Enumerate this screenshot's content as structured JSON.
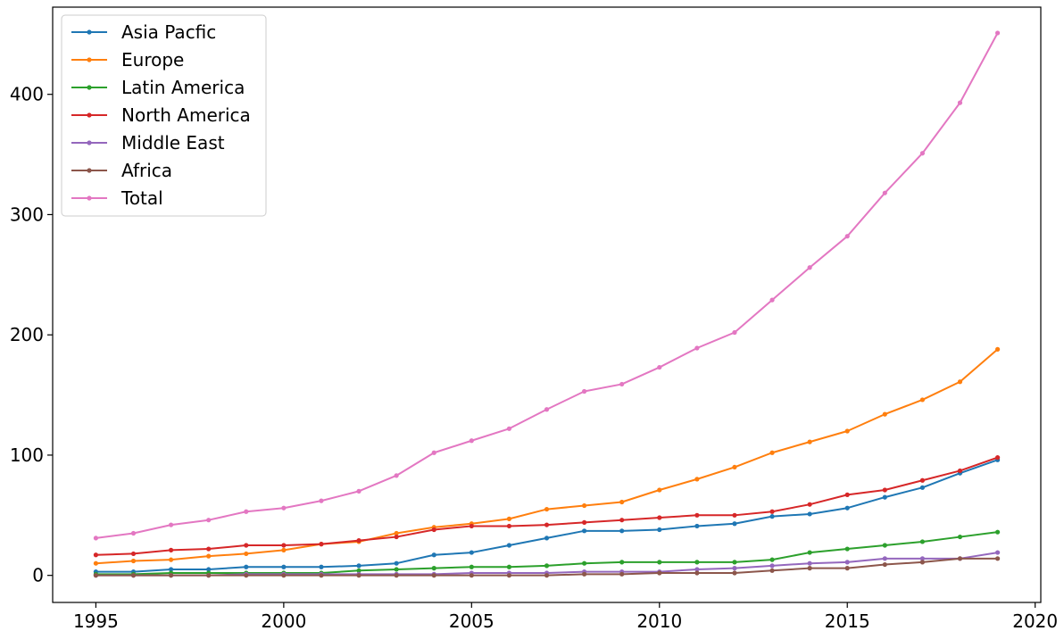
{
  "chart_data": {
    "type": "line",
    "title": "",
    "xlabel": "",
    "ylabel": "",
    "xlim": [
      1993.85,
      2020.15
    ],
    "ylim": [
      -22.5,
      472.5
    ],
    "grid": false,
    "legend_position": "top-left",
    "x_ticks": [
      1995,
      2000,
      2005,
      2010,
      2015,
      2020
    ],
    "y_ticks": [
      0,
      100,
      200,
      300,
      400
    ],
    "x": [
      1995,
      1996,
      1997,
      1998,
      1999,
      2000,
      2001,
      2002,
      2003,
      2004,
      2005,
      2006,
      2007,
      2008,
      2009,
      2010,
      2011,
      2012,
      2013,
      2014,
      2015,
      2016,
      2017,
      2018,
      2019
    ],
    "series": [
      {
        "name": "Asia Pacfic",
        "color": "#1f77b4",
        "values": [
          3,
          3,
          5,
          5,
          7,
          7,
          7,
          8,
          10,
          17,
          19,
          25,
          31,
          37,
          37,
          38,
          41,
          43,
          49,
          51,
          56,
          65,
          73,
          85,
          96
        ]
      },
      {
        "name": "Europe",
        "color": "#ff7f0e",
        "values": [
          10,
          12,
          13,
          16,
          18,
          21,
          26,
          28,
          35,
          40,
          43,
          47,
          55,
          58,
          61,
          71,
          80,
          90,
          102,
          111,
          120,
          134,
          146,
          161,
          188
        ]
      },
      {
        "name": "Latin America",
        "color": "#2ca02c",
        "values": [
          1,
          1,
          2,
          2,
          2,
          2,
          2,
          4,
          5,
          6,
          7,
          7,
          8,
          10,
          11,
          11,
          11,
          11,
          13,
          19,
          22,
          25,
          28,
          32,
          36
        ]
      },
      {
        "name": "North America",
        "color": "#d62728",
        "values": [
          17,
          18,
          21,
          22,
          25,
          25,
          26,
          29,
          32,
          38,
          41,
          41,
          42,
          44,
          46,
          48,
          50,
          50,
          53,
          59,
          67,
          71,
          79,
          87,
          98
        ]
      },
      {
        "name": "Middle East",
        "color": "#9467bd",
        "values": [
          0,
          0,
          0,
          0,
          1,
          1,
          1,
          1,
          1,
          1,
          2,
          2,
          2,
          3,
          3,
          3,
          5,
          6,
          8,
          10,
          11,
          14,
          14,
          14,
          19
        ]
      },
      {
        "name": "Africa",
        "color": "#8c564b",
        "values": [
          0,
          0,
          0,
          0,
          0,
          0,
          0,
          0,
          0,
          0,
          0,
          0,
          0,
          1,
          1,
          2,
          2,
          2,
          4,
          6,
          6,
          9,
          11,
          14,
          14
        ]
      },
      {
        "name": "Total",
        "color": "#e377c2",
        "values": [
          31,
          35,
          42,
          46,
          53,
          56,
          62,
          70,
          83,
          102,
          112,
          122,
          138,
          153,
          159,
          173,
          189,
          202,
          229,
          256,
          282,
          318,
          351,
          393,
          451
        ]
      }
    ]
  }
}
